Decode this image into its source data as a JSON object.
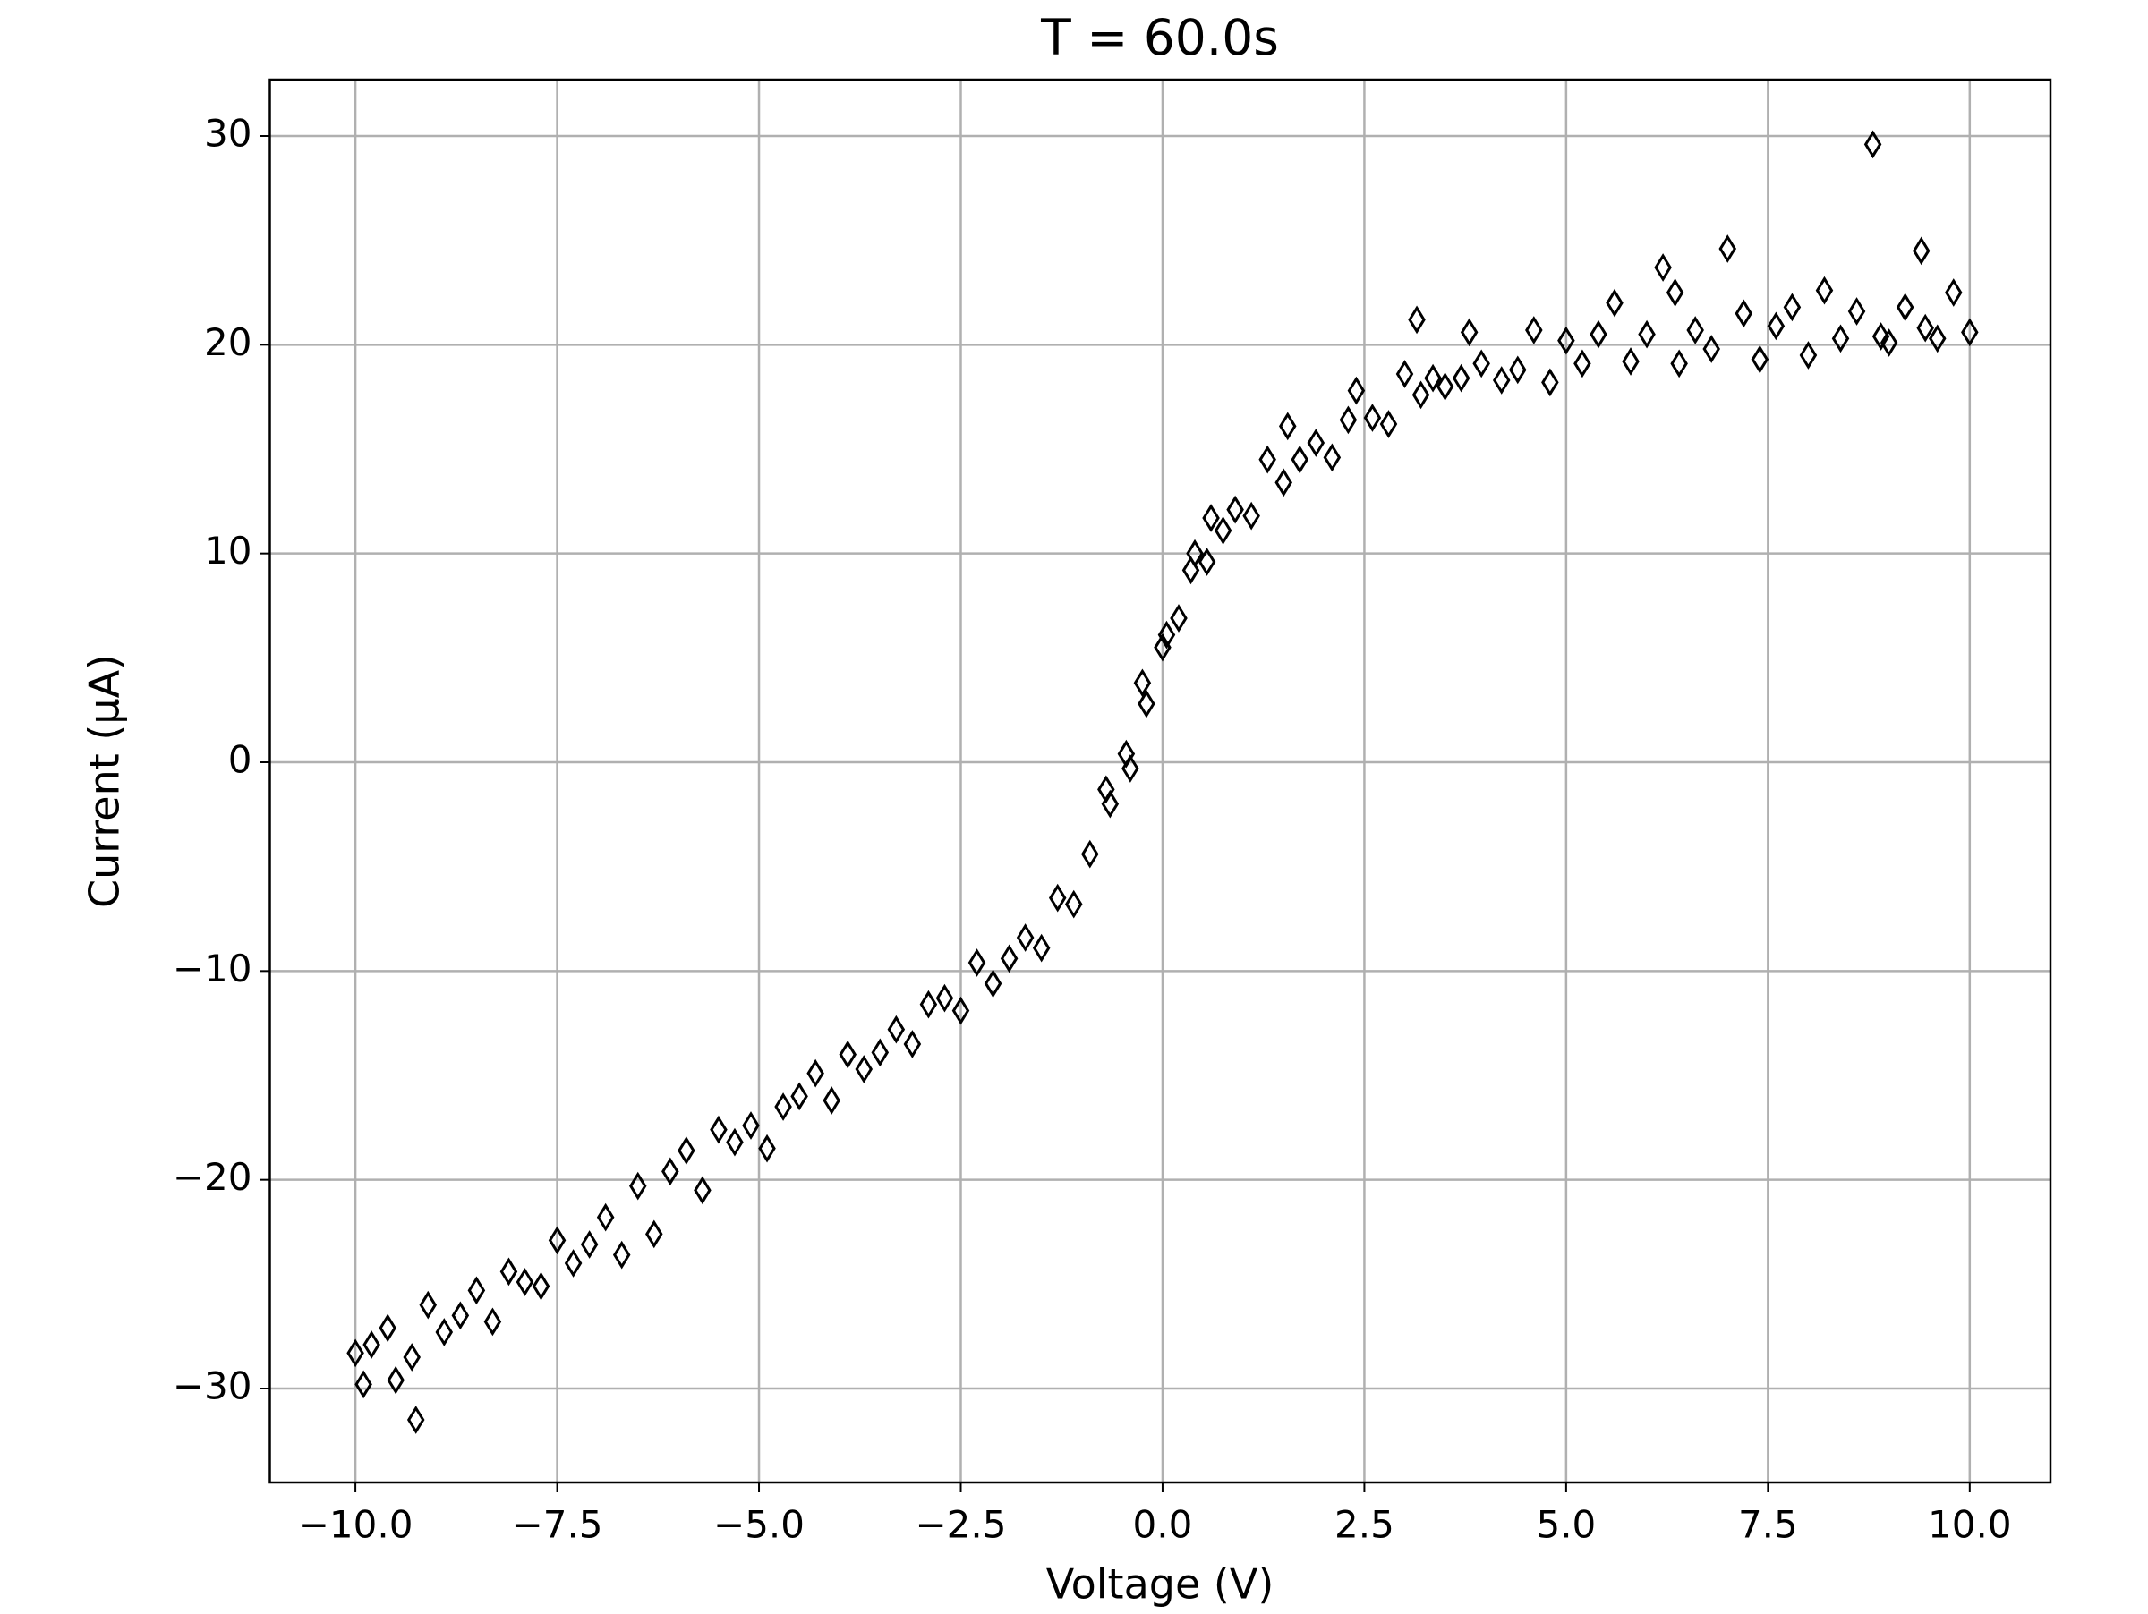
{
  "chart_data": {
    "type": "scatter",
    "title": "T = 60.0s",
    "x_label": "Voltage (V)",
    "y_label": "Current (μA)",
    "color": "#000000",
    "grid": true,
    "xlim": [
      -11.06,
      11.0
    ],
    "ylim": [
      -34.5,
      32.7
    ],
    "xticks": [
      {
        "value": -10,
        "label": "−10.0"
      },
      {
        "value": -7.5,
        "label": "−7.5"
      },
      {
        "value": -5,
        "label": "−5.0"
      },
      {
        "value": -2.5,
        "label": "−2.5"
      },
      {
        "value": 0,
        "label": "0.0"
      },
      2.5,
      {
        "value": 5,
        "label": "5.0"
      },
      7.5,
      {
        "value": 10,
        "label": "10.0"
      }
    ],
    "yticks": [
      {
        "value": -30,
        "label": "−30"
      },
      {
        "value": -20,
        "label": "−20"
      },
      {
        "value": -10,
        "label": "−10"
      },
      0,
      10,
      20,
      30
    ],
    "x": [
      -10.0,
      -9.9,
      -9.8,
      -9.6,
      -9.5,
      -9.3,
      -9.25,
      -9.1,
      -8.9,
      -8.7,
      -8.5,
      -8.3,
      -8.1,
      -7.9,
      -7.7,
      -7.5,
      -7.3,
      -7.1,
      -6.9,
      -6.7,
      -6.5,
      -6.3,
      -6.1,
      -5.9,
      -5.7,
      -5.5,
      -5.3,
      -5.1,
      -4.9,
      -4.7,
      -4.5,
      -4.3,
      -4.1,
      -3.9,
      -3.7,
      -3.5,
      -3.3,
      -3.1,
      -2.9,
      -2.7,
      -2.5,
      -2.3,
      -2.1,
      -1.9,
      -1.7,
      -1.5,
      -1.3,
      -1.1,
      -0.9,
      -0.7,
      -0.65,
      -0.45,
      -0.4,
      -0.25,
      -0.2,
      0.0,
      0.05,
      0.2,
      0.35,
      0.4,
      0.55,
      0.6,
      0.75,
      0.9,
      1.1,
      1.3,
      1.5,
      1.55,
      1.7,
      1.9,
      2.1,
      2.3,
      2.4,
      2.6,
      2.8,
      3.0,
      3.15,
      3.2,
      3.35,
      3.5,
      3.7,
      3.8,
      3.95,
      4.2,
      4.4,
      4.6,
      4.8,
      5.0,
      5.2,
      5.4,
      5.6,
      5.8,
      6.0,
      6.2,
      6.35,
      6.4,
      6.6,
      6.8,
      7.0,
      7.2,
      7.4,
      7.6,
      7.8,
      8.0,
      8.2,
      8.4,
      8.6,
      8.8,
      8.9,
      9.0,
      9.2,
      9.4,
      9.45,
      9.6,
      9.8,
      10.0
    ],
    "values": [
      -28.3,
      -29.8,
      -27.9,
      -27.1,
      -29.6,
      -28.5,
      -31.5,
      -26.0,
      -27.3,
      -26.5,
      -25.3,
      -26.8,
      -24.4,
      -24.9,
      -25.1,
      -22.9,
      -24.0,
      -23.1,
      -21.8,
      -23.6,
      -20.3,
      -22.6,
      -19.6,
      -18.6,
      -20.5,
      -17.6,
      -18.2,
      -17.4,
      -18.5,
      -16.5,
      -16.0,
      -14.9,
      -16.2,
      -14.0,
      -14.7,
      -13.9,
      -12.8,
      -13.5,
      -11.6,
      -11.3,
      -11.9,
      -9.6,
      -10.6,
      -9.4,
      -8.4,
      -8.9,
      -6.5,
      -6.8,
      -4.4,
      -1.3,
      -2.0,
      0.4,
      -0.3,
      3.8,
      2.8,
      5.5,
      6.1,
      6.9,
      9.2,
      10.0,
      9.6,
      11.7,
      11.1,
      12.1,
      11.8,
      14.5,
      13.4,
      16.1,
      14.5,
      15.3,
      14.6,
      16.4,
      17.8,
      16.5,
      16.2,
      18.6,
      21.2,
      17.6,
      18.4,
      18.0,
      18.4,
      20.6,
      19.1,
      18.3,
      18.8,
      20.7,
      18.2,
      20.2,
      19.1,
      20.5,
      22.0,
      19.2,
      20.5,
      23.7,
      22.5,
      19.1,
      20.7,
      19.8,
      24.6,
      21.5,
      19.3,
      20.9,
      21.8,
      19.5,
      22.6,
      20.3,
      21.6,
      29.6,
      20.4,
      20.1,
      21.8,
      24.5,
      20.8,
      20.3,
      22.5,
      20.6
    ]
  }
}
